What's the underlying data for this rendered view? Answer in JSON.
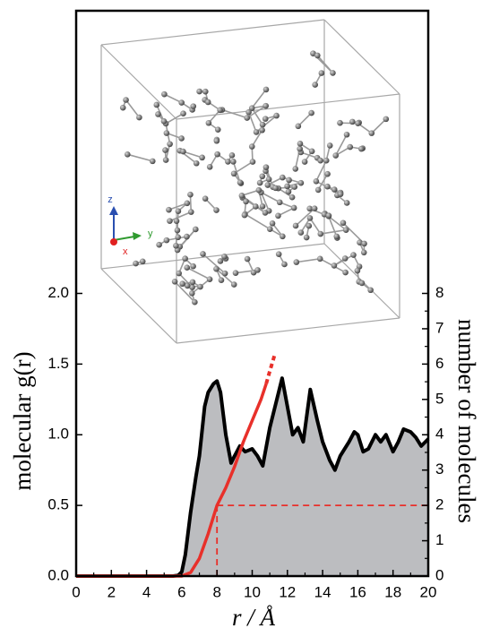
{
  "chart_data": {
    "type": "line",
    "x": [
      0,
      1,
      2,
      3,
      4,
      5,
      5.5,
      5.8,
      6,
      6.2,
      6.5,
      6.8,
      7,
      7.3,
      7.5,
      7.8,
      8,
      8.2,
      8.5,
      8.8,
      9,
      9.3,
      9.6,
      10,
      10.3,
      10.6,
      11,
      11.3,
      11.7,
      12,
      12.3,
      12.6,
      12.9,
      13.3,
      13.7,
      14,
      14.4,
      14.7,
      15,
      15.5,
      15.8,
      16,
      16.3,
      16.6,
      17,
      17.3,
      17.6,
      18,
      18.3,
      18.6,
      19,
      19.3,
      19.6,
      20
    ],
    "series": [
      {
        "color": "#000000",
        "fill": "#bcbdc0",
        "axis": "y",
        "values": [
          0,
          0,
          0,
          0,
          0,
          0,
          0,
          0.005,
          0.03,
          0.15,
          0.45,
          0.7,
          0.85,
          1.2,
          1.3,
          1.36,
          1.38,
          1.3,
          1.0,
          0.8,
          0.85,
          0.92,
          0.88,
          0.9,
          0.85,
          0.78,
          1.05,
          1.2,
          1.4,
          1.2,
          1.0,
          1.05,
          0.95,
          1.32,
          1.1,
          0.95,
          0.82,
          0.75,
          0.85,
          0.95,
          1.02,
          1.0,
          0.88,
          0.9,
          1.0,
          0.95,
          1.0,
          0.88,
          0.95,
          1.04,
          1.02,
          0.98,
          0.92,
          0.97
        ]
      },
      {
        "color": "#e8302a",
        "axis": "y2",
        "x": [
          0,
          5,
          6,
          6.5,
          7,
          7.5,
          8,
          8.5,
          9,
          9.5,
          10,
          10.5,
          10.8
        ],
        "values": [
          0,
          0,
          0,
          0.1,
          0.5,
          1.2,
          2.0,
          2.5,
          3.1,
          3.8,
          4.4,
          5.0,
          5.45
        ]
      },
      {
        "color": "#e8302a",
        "axis": "y2",
        "dash": "dotted",
        "x": [
          10.8,
          11.0,
          11.3
        ],
        "values": [
          5.45,
          5.8,
          6.3
        ]
      }
    ],
    "reference": {
      "x": 8,
      "y": 2,
      "axis": "y2",
      "color": "#e8302a"
    },
    "xlim": [
      0,
      20
    ],
    "xticks": [
      0,
      2,
      4,
      6,
      8,
      10,
      12,
      14,
      16,
      18,
      20
    ],
    "ylim": [
      0,
      4
    ],
    "yticks": [
      {
        "value": 0,
        "label": "0.0"
      },
      {
        "value": 0.5,
        "label": "0.5"
      },
      {
        "value": 1,
        "label": "1.0"
      },
      {
        "value": 1.5,
        "label": "1.5"
      },
      {
        "value": 2,
        "label": "2.0"
      }
    ],
    "y2lim": [
      0,
      16
    ],
    "y2ticks": [
      0,
      1,
      2,
      3,
      4,
      5,
      6,
      7,
      8
    ],
    "xlabel": "r / Å",
    "ylabel": "molecular g(r)",
    "y2label": "number of molecules",
    "inset": {
      "axes": [
        "z",
        "y",
        "x"
      ]
    }
  }
}
